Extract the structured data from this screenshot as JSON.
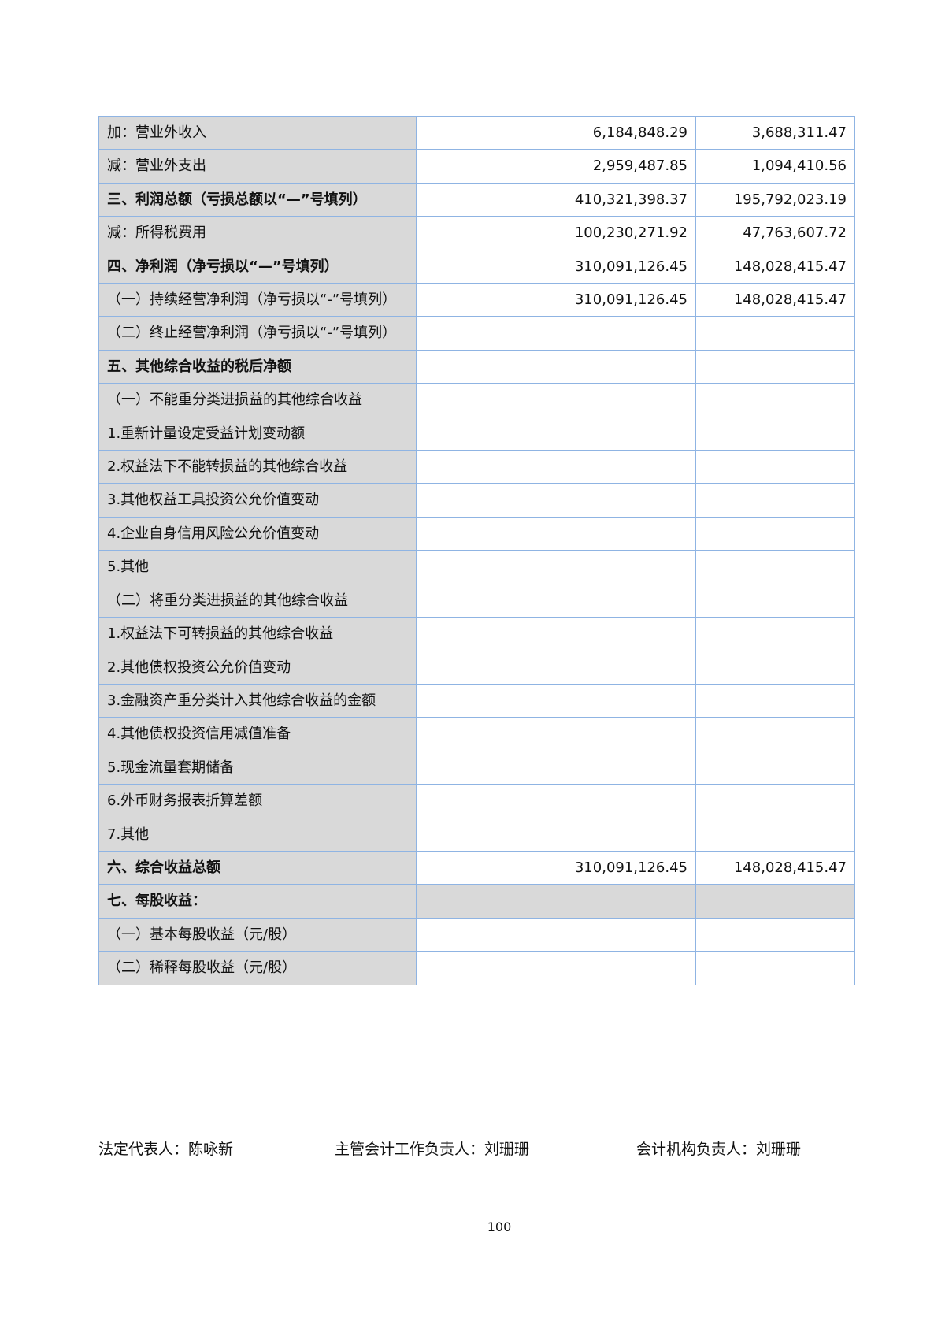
{
  "rows": [
    {
      "label": "加：营业外收入",
      "current": "6,184,848.29",
      "previous": "3,688,311.47"
    },
    {
      "label": "减：营业外支出",
      "current": "2,959,487.85",
      "previous": "1,094,410.56"
    },
    {
      "label": "三、利润总额（亏损总额以“—”号填列）",
      "current": "410,321,398.37",
      "previous": "195,792,023.19",
      "bold": true
    },
    {
      "label": "减：所得税费用",
      "current": "100,230,271.92",
      "previous": "47,763,607.72"
    },
    {
      "label": "四、净利润（净亏损以“—”号填列）",
      "current": "310,091,126.45",
      "previous": "148,028,415.47",
      "bold": true
    },
    {
      "label": "（一）持续经营净利润（净亏损以“-”号填列）",
      "current": "310,091,126.45",
      "previous": "148,028,415.47"
    },
    {
      "label": "（二）终止经营净利润（净亏损以“-”号填列）",
      "current": "",
      "previous": ""
    },
    {
      "label": "五、其他综合收益的税后净额",
      "current": "",
      "previous": "",
      "bold": true
    },
    {
      "label": "（一）不能重分类进损益的其他综合收益",
      "current": "",
      "previous": ""
    },
    {
      "label": "1.重新计量设定受益计划变动额",
      "current": "",
      "previous": ""
    },
    {
      "label": "2.权益法下不能转损益的其他综合收益",
      "current": "",
      "previous": ""
    },
    {
      "label": "3.其他权益工具投资公允价值变动",
      "current": "",
      "previous": ""
    },
    {
      "label": "4.企业自身信用风险公允价值变动",
      "current": "",
      "previous": ""
    },
    {
      "label": "5.其他",
      "current": "",
      "previous": ""
    },
    {
      "label": "（二）将重分类进损益的其他综合收益",
      "current": "",
      "previous": ""
    },
    {
      "label": "1.权益法下可转损益的其他综合收益",
      "current": "",
      "previous": ""
    },
    {
      "label": "2.其他债权投资公允价值变动",
      "current": "",
      "previous": ""
    },
    {
      "label": "3.金融资产重分类计入其他综合收益的金额",
      "current": "",
      "previous": ""
    },
    {
      "label": "4.其他债权投资信用减值准备",
      "current": "",
      "previous": ""
    },
    {
      "label": "5.现金流量套期储备",
      "current": "",
      "previous": ""
    },
    {
      "label": "6.外币财务报表折算差额",
      "current": "",
      "previous": ""
    },
    {
      "label": "7.其他",
      "current": "",
      "previous": ""
    },
    {
      "label": "六、综合收益总额",
      "current": "310,091,126.45",
      "previous": "148,028,415.47",
      "bold": true
    },
    {
      "label": "七、每股收益：",
      "current": "",
      "previous": "",
      "bold": true,
      "gray": true
    },
    {
      "label": "（一）基本每股收益（元/股）",
      "current": "",
      "previous": ""
    },
    {
      "label": "（二）稀释每股收益（元/股）",
      "current": "",
      "previous": ""
    }
  ],
  "footer": {
    "legal_rep": "法定代表人：陈咏新",
    "accounting_head": "主管会计工作负责人：刘珊珊",
    "dept_head": "会计机构负责人：刘珊珊"
  },
  "page_number": "100"
}
